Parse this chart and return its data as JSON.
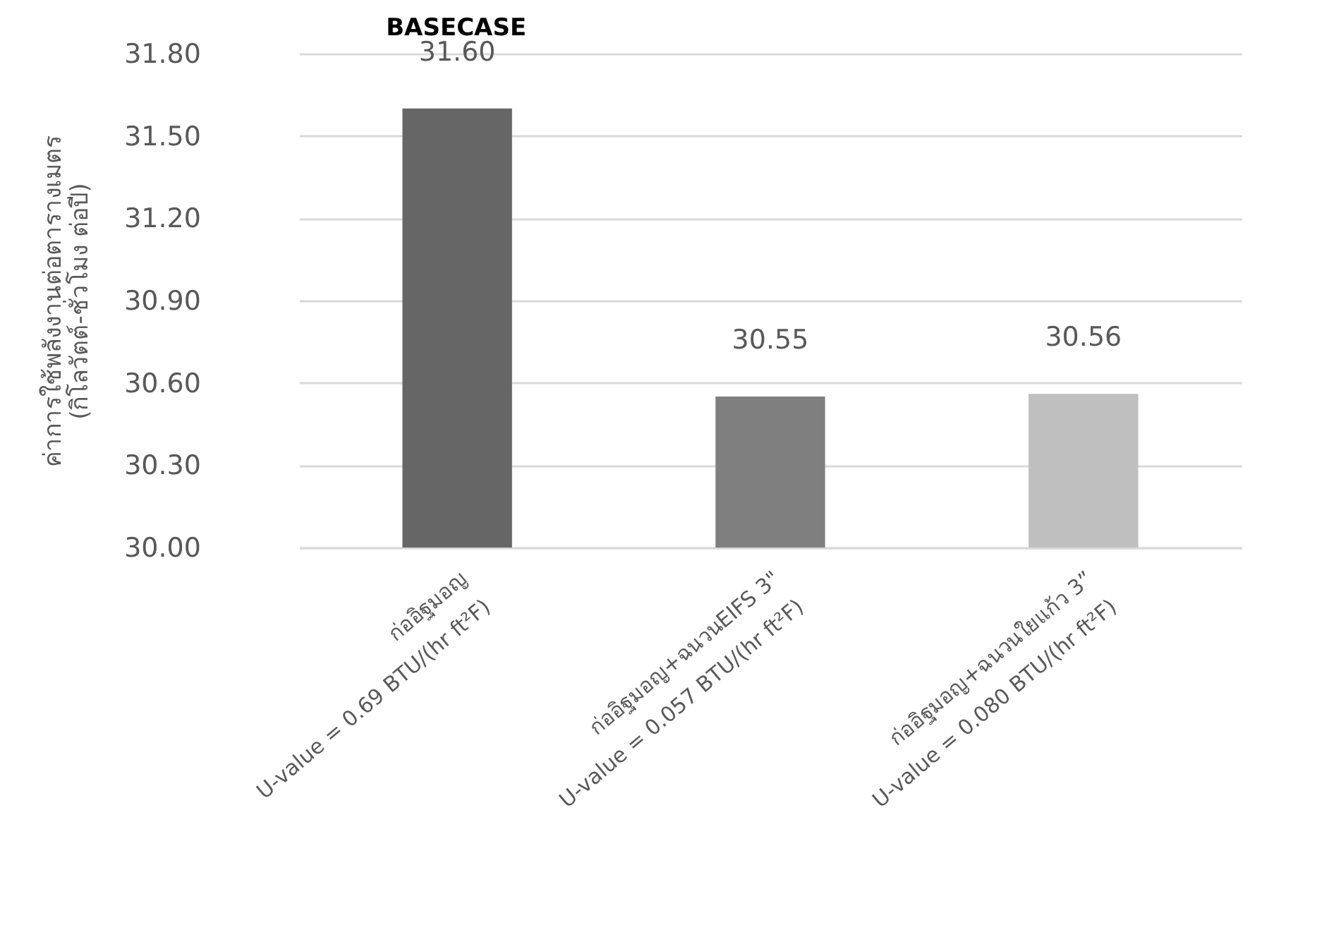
{
  "chart_data": {
    "type": "bar",
    "ylabel": "ค่าการใช้พลังงานต่อตารางเมตร\n(กิโลวัตต์-ชั่วโมง ต่อปี)",
    "categories": [
      "ก่ออิฐมอญ\nU-value = 0.69 BTU/(hr ft²F)",
      "ก่ออิฐมอญ+ฉนวนEIFS 3\"\nU-value = 0.057 BTU/(hr ft²F)",
      "ก่ออิฐมอญ+ฉนวนใยแก้ว 3”\nU-value = 0.080 BTU/(hr ft²F)"
    ],
    "values": [
      31.6,
      30.55,
      30.56
    ],
    "colors": [
      "#666666",
      "#7f7f7f",
      "#bfbfbf"
    ],
    "value_labels": [
      "31.60",
      "30.55",
      "30.56"
    ],
    "ylim": [
      30,
      31.8
    ],
    "yticks": [
      {
        "value": 30,
        "label": "30.00"
      },
      {
        "value": 30.3,
        "label": "30.30"
      },
      {
        "value": 30.6,
        "label": "30.60"
      },
      {
        "value": 30.9,
        "label": "30.90"
      },
      {
        "value": 31.2,
        "label": "31.20"
      },
      {
        "value": 31.5,
        "label": "31.50"
      },
      {
        "value": 31.8,
        "label": "31.80"
      }
    ],
    "grid": "y",
    "annotations": [
      "BASECASE"
    ]
  }
}
